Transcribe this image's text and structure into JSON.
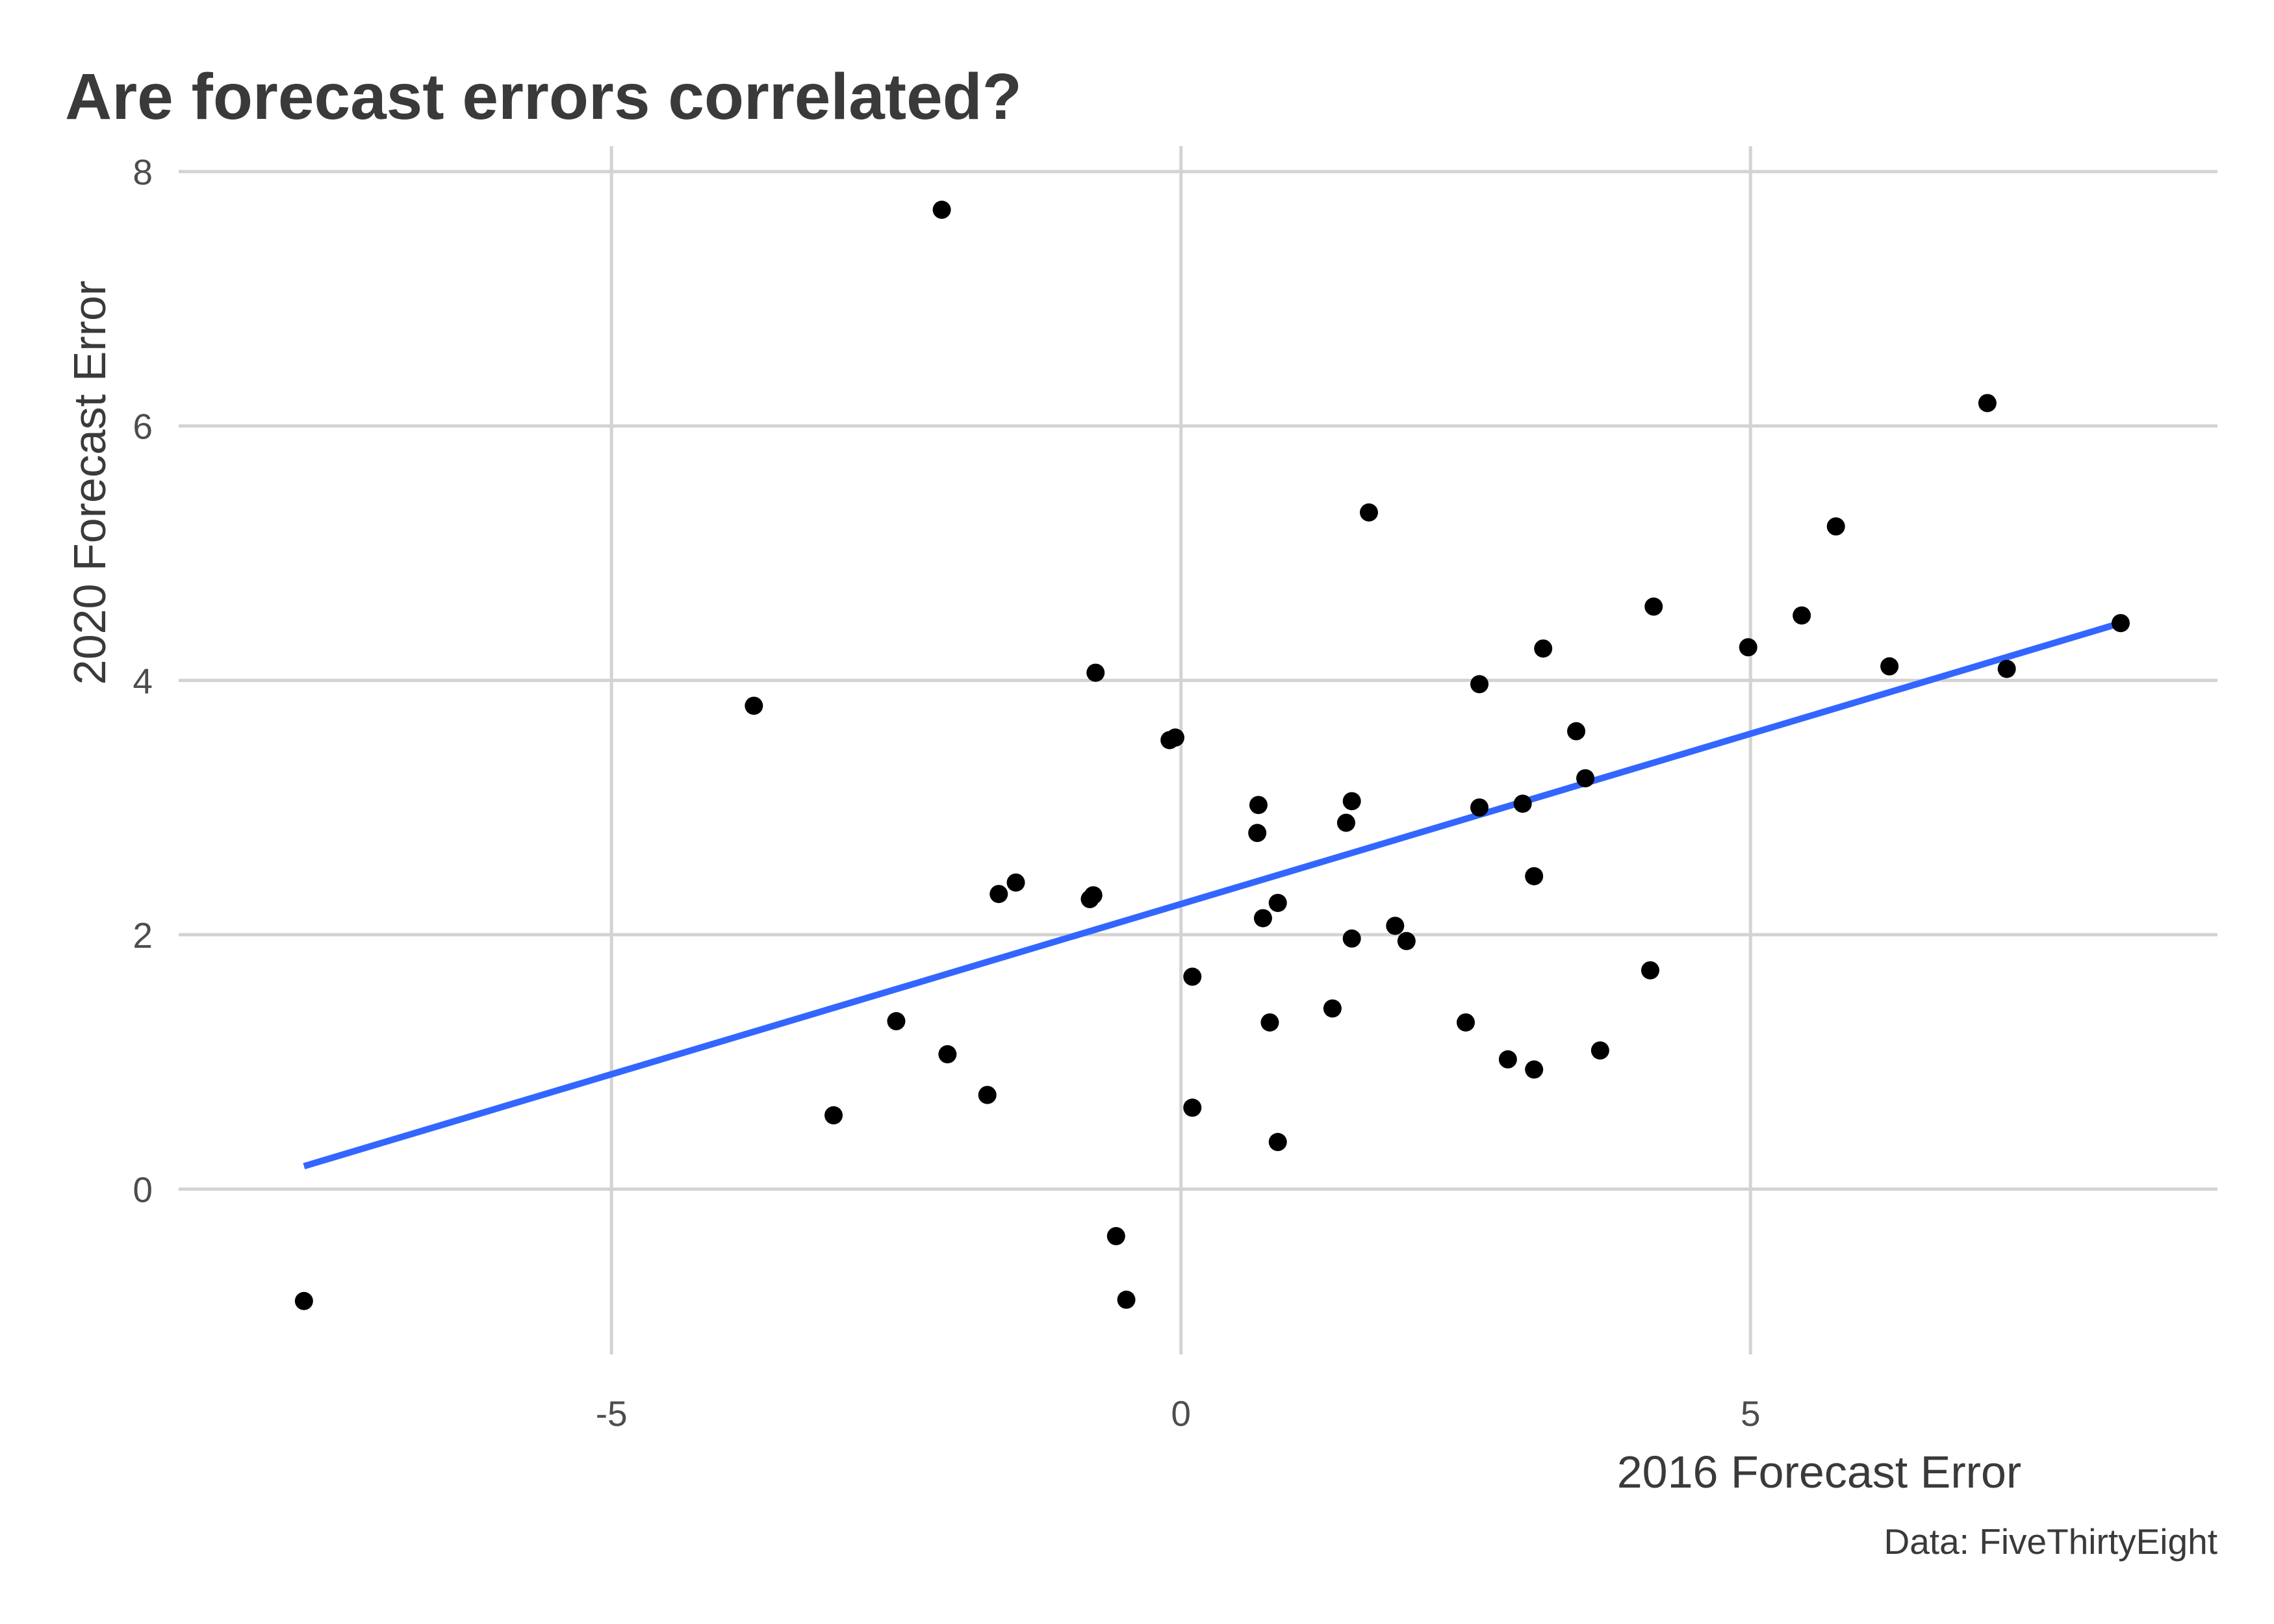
{
  "chart_data": {
    "type": "scatter",
    "title": "Are forecast errors correlated?",
    "xlabel": "2016 Forecast Error",
    "ylabel": "2020 Forecast Error",
    "caption": "Data: FiveThirtyEight",
    "xlim": [
      -8.8,
      9.1
    ],
    "ylim": [
      -1.3,
      8.2
    ],
    "x_ticks": [
      -5,
      0,
      5
    ],
    "x_tick_labels": [
      "-5",
      "0",
      "5"
    ],
    "y_ticks": [
      0,
      2,
      4,
      6,
      8
    ],
    "y_tick_labels": [
      "0",
      "2",
      "4",
      "6",
      "8"
    ],
    "grid": true,
    "legend": "none",
    "colors": {
      "points": "#000000",
      "trend": "#3366ff",
      "grid": "#d3d3d3"
    },
    "points": [
      [
        -7.7,
        -0.88
      ],
      [
        -3.75,
        3.8
      ],
      [
        -3.05,
        0.58
      ],
      [
        -2.5,
        1.32
      ],
      [
        -2.1,
        7.7
      ],
      [
        -2.05,
        1.06
      ],
      [
        -1.7,
        0.74
      ],
      [
        -1.6,
        2.32
      ],
      [
        -1.45,
        2.41
      ],
      [
        -0.8,
        2.28
      ],
      [
        -0.77,
        2.31
      ],
      [
        -0.75,
        4.06
      ],
      [
        -0.57,
        -0.37
      ],
      [
        -0.48,
        -0.87
      ],
      [
        -0.1,
        3.53
      ],
      [
        -0.05,
        3.55
      ],
      [
        0.1,
        1.67
      ],
      [
        0.1,
        0.64
      ],
      [
        0.67,
        2.8
      ],
      [
        0.68,
        3.02
      ],
      [
        0.72,
        2.13
      ],
      [
        0.78,
        1.31
      ],
      [
        0.85,
        2.25
      ],
      [
        0.85,
        0.37
      ],
      [
        1.33,
        1.42
      ],
      [
        1.45,
        2.88
      ],
      [
        1.5,
        3.05
      ],
      [
        1.5,
        1.97
      ],
      [
        1.65,
        5.32
      ],
      [
        1.88,
        2.07
      ],
      [
        1.98,
        1.95
      ],
      [
        2.5,
        1.31
      ],
      [
        2.62,
        3.97
      ],
      [
        2.62,
        3.0
      ],
      [
        2.87,
        1.02
      ],
      [
        3.0,
        3.03
      ],
      [
        3.1,
        2.46
      ],
      [
        3.1,
        0.94
      ],
      [
        3.18,
        4.25
      ],
      [
        3.47,
        3.6
      ],
      [
        3.55,
        3.23
      ],
      [
        3.68,
        1.09
      ],
      [
        4.12,
        1.72
      ],
      [
        4.15,
        4.58
      ],
      [
        4.98,
        4.26
      ],
      [
        5.45,
        4.51
      ],
      [
        5.75,
        5.21
      ],
      [
        6.22,
        4.11
      ],
      [
        7.08,
        6.18
      ],
      [
        7.25,
        4.09
      ],
      [
        8.25,
        4.45
      ]
    ],
    "trend_line": {
      "x": [
        -7.7,
        8.25
      ],
      "y": [
        0.18,
        4.45
      ]
    }
  }
}
